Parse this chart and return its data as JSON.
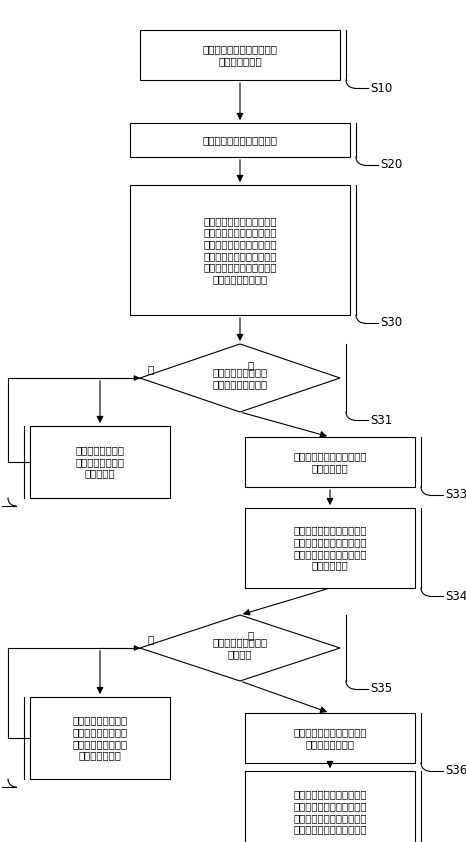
{
  "fig_width": 4.66,
  "fig_height": 8.42,
  "bg_color": "#ffffff",
  "s10_label": "接受运动路径的起始点位和\n目标点位的输入",
  "s20_label": "接受末端位姿约束值的输入",
  "s30_label": "获取所述机械臂的末端在关\n节空间中的限定运动区域，\n并在所述限定运动区域中随\n机采样所述运动路径的运动\n点位，使所述运动点位满足\n所述末端位姿约束值",
  "s31_label": "采样的所述运动点位\n是否为非奇异点位？",
  "s32_label": "重新采样直至采样\n的所述运动点位为\n非奇异点位",
  "s33_label": "使所述运动点位满足所述末\n端位姿约束值",
  "s34_label": "计算采样的运动点位的实际\n末端位姿值以及所述实际末\n端位姿值与所述末端位置值\n的位姿误差值",
  "s35_label": "位姿误差值是否小于\n预设阈值",
  "s36_label": "采样的所述运动点位满足所\n述末端位姿约束值",
  "s37_label": "采样的运动点位不满\n足所述末端位姿约束\n值，对采样的所述运\n动点位进行更新",
  "s40_label": "在采样的所述运动点位与所\n述目标点位重合时，根据所\n述起始点位、采样的运动点\n位和目标点位输出运动路径",
  "no_label": "否",
  "yes_label": "是"
}
